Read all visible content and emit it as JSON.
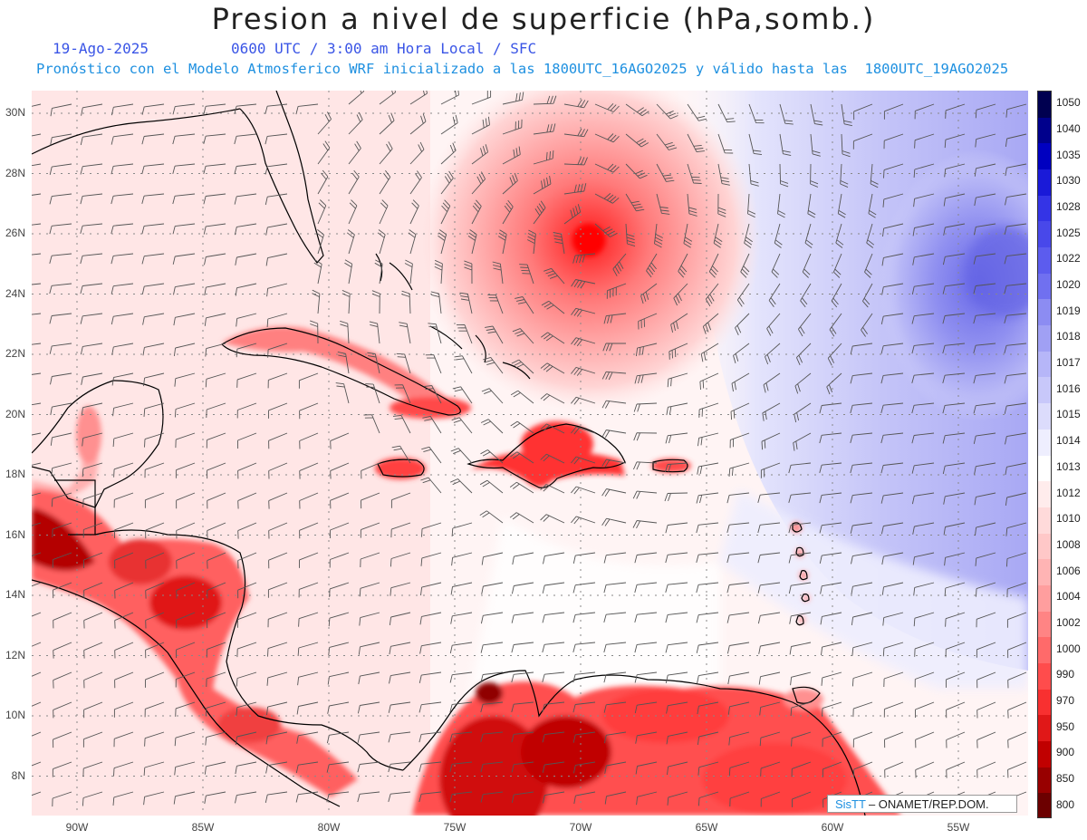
{
  "header": {
    "title": "Presion a nivel de superficie (hPa,somb.)",
    "date": "19-Ago-2025",
    "valid_time": "0600 UTC / 3:00 am Hora Local / SFC",
    "model_info": "Pronóstico con el Modelo Atmosferico WRF inicializado a las 1800UTC_16AGO2025 y válido hasta las  1800UTC_19AGO2025"
  },
  "map": {
    "lat_labels": [
      "30N",
      "28N",
      "26N",
      "24N",
      "22N",
      "20N",
      "18N",
      "16N",
      "14N",
      "12N",
      "10N",
      "8N"
    ],
    "lon_labels": [
      "90W",
      "85W",
      "80W",
      "75W",
      "70W",
      "65W",
      "60W",
      "55W"
    ],
    "features": [
      "pressure-shading",
      "wind-barbs",
      "coastlines",
      "hurricane-low-center"
    ]
  },
  "colorbar": {
    "labels": [
      "1050",
      "1040",
      "1035",
      "1030",
      "1028",
      "1025",
      "1022",
      "1020",
      "1019",
      "1018",
      "1017",
      "1016",
      "1015",
      "1014",
      "1013",
      "1012",
      "1010",
      "1008",
      "1006",
      "1004",
      "1002",
      "1000",
      "990",
      "970",
      "950",
      "900",
      "850",
      "800"
    ],
    "colors": [
      "#000050",
      "#00008c",
      "#0000c0",
      "#1a1ad8",
      "#3434e6",
      "#4848ea",
      "#5c5cee",
      "#7070f0",
      "#8c8cf2",
      "#a0a0f4",
      "#b6b6f8",
      "#c8c8fa",
      "#dcdcfc",
      "#eeeefe",
      "#ffffff",
      "#ffecec",
      "#ffdada",
      "#ffc8c8",
      "#ffb4b4",
      "#ff9e9e",
      "#ff8484",
      "#ff6a6a",
      "#ff4c4c",
      "#f83030",
      "#e01818",
      "#c00000",
      "#980000",
      "#6c0000"
    ]
  },
  "credit": {
    "logo": "SisTT",
    "text": "– ONAMET/REP.DOM."
  }
}
